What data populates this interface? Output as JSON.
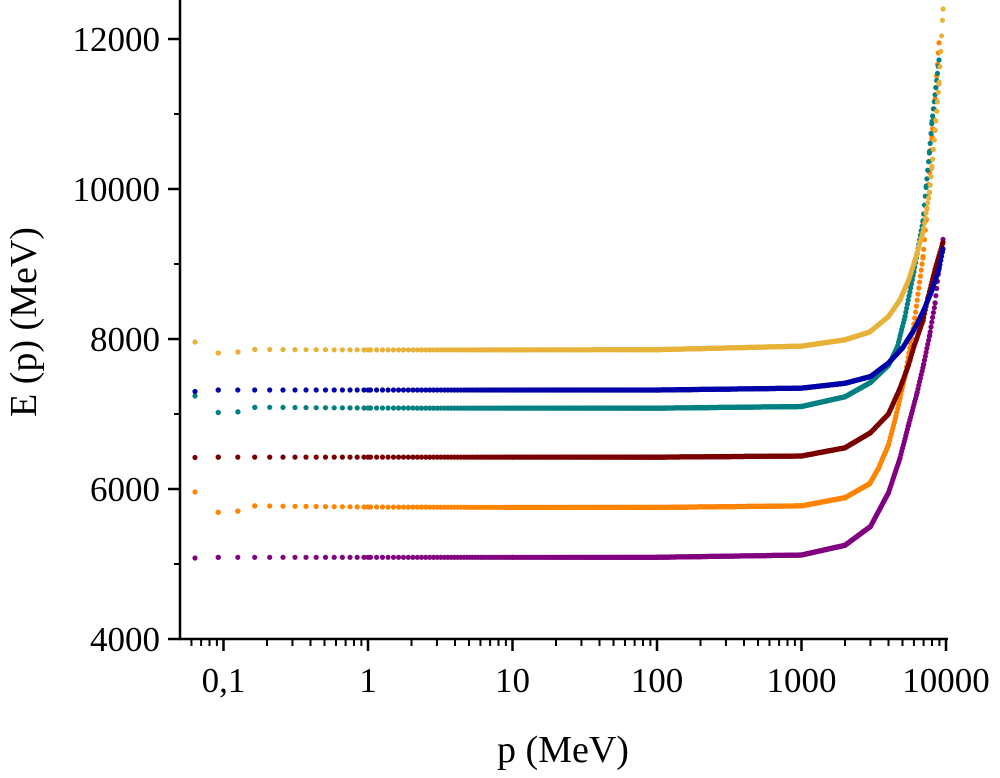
{
  "chart_data": {
    "type": "scatter",
    "title": "",
    "xlabel": "p (MeV)",
    "ylabel": "E (p) (MeV)",
    "xscale": "log",
    "xlim": [
      0.05,
      10000
    ],
    "ylim": [
      4000,
      12500
    ],
    "grid": false,
    "legend": "none",
    "x_ticks": [
      {
        "value": 0.1,
        "label": "0,1"
      },
      {
        "value": 1,
        "label": "1"
      },
      {
        "value": 10,
        "label": "10"
      },
      {
        "value": 100,
        "label": "100"
      },
      {
        "value": 1000,
        "label": "1000"
      },
      {
        "value": 10000,
        "label": "10000"
      }
    ],
    "y_ticks": [
      {
        "value": 4000,
        "label": "4000"
      },
      {
        "value": 6000,
        "label": "6000"
      },
      {
        "value": 8000,
        "label": "8000"
      },
      {
        "value": 10000,
        "label": "10000"
      },
      {
        "value": 12000,
        "label": "12000"
      }
    ],
    "y_minor_ticks": [
      5000,
      7000,
      9000,
      11000
    ],
    "series": [
      {
        "name": "series-yellow",
        "color": "#E8B23A",
        "points": [
          [
            0.0635,
            7960
          ],
          [
            0.092,
            7813
          ],
          [
            0.126,
            7827
          ],
          [
            0.165,
            7860
          ],
          [
            1,
            7855
          ],
          [
            10,
            7855
          ],
          [
            100,
            7858
          ],
          [
            1000,
            7905
          ],
          [
            2000,
            7990
          ],
          [
            2960,
            8093
          ],
          [
            4000,
            8300
          ],
          [
            4800,
            8520
          ],
          [
            5500,
            8780
          ],
          [
            6100,
            9050
          ],
          [
            6940,
            9430
          ],
          [
            7690,
            9960
          ],
          [
            8000,
            10300
          ],
          [
            8400,
            10780
          ],
          [
            8950,
            11400
          ],
          [
            9530,
            12400
          ]
        ]
      },
      {
        "name": "series-orange",
        "color": "#FF8400",
        "points": [
          [
            0.0635,
            5960
          ],
          [
            0.092,
            5690
          ],
          [
            0.126,
            5705
          ],
          [
            0.165,
            5775
          ],
          [
            1,
            5760
          ],
          [
            10,
            5755
          ],
          [
            100,
            5755
          ],
          [
            1000,
            5775
          ],
          [
            2000,
            5885
          ],
          [
            2960,
            6070
          ],
          [
            3400,
            6270
          ],
          [
            4000,
            6590
          ],
          [
            4500,
            6970
          ],
          [
            5200,
            7500
          ],
          [
            6000,
            8200
          ],
          [
            6940,
            9100
          ],
          [
            7300,
            9600
          ],
          [
            7690,
            10250
          ],
          [
            8000,
            10700
          ],
          [
            8400,
            11200
          ],
          [
            8950,
            11950
          ]
        ]
      },
      {
        "name": "series-teal",
        "color": "#008080",
        "points": [
          [
            0.0635,
            7240
          ],
          [
            0.092,
            7020
          ],
          [
            0.126,
            7030
          ],
          [
            0.165,
            7090
          ],
          [
            1,
            7080
          ],
          [
            10,
            7078
          ],
          [
            100,
            7078
          ],
          [
            1000,
            7100
          ],
          [
            2000,
            7230
          ],
          [
            3000,
            7420
          ],
          [
            4000,
            7650
          ],
          [
            4600,
            7890
          ],
          [
            5200,
            8300
          ],
          [
            6000,
            8900
          ],
          [
            6940,
            9580
          ],
          [
            7300,
            10040
          ],
          [
            7690,
            10500
          ],
          [
            8000,
            10900
          ],
          [
            8950,
            11720
          ]
        ]
      },
      {
        "name": "series-blue",
        "color": "#0000A8",
        "points": [
          [
            0.0635,
            7300
          ],
          [
            0.092,
            7320
          ],
          [
            1,
            7320
          ],
          [
            10,
            7320
          ],
          [
            100,
            7320
          ],
          [
            1000,
            7345
          ],
          [
            2000,
            7410
          ],
          [
            3000,
            7500
          ],
          [
            4000,
            7680
          ],
          [
            5000,
            7880
          ],
          [
            6000,
            8120
          ],
          [
            7000,
            8380
          ],
          [
            8000,
            8650
          ],
          [
            8950,
            8930
          ],
          [
            9530,
            9200
          ]
        ]
      },
      {
        "name": "series-darkred",
        "color": "#7A0000",
        "points": [
          [
            0.0635,
            6420
          ],
          [
            0.092,
            6425
          ],
          [
            1,
            6425
          ],
          [
            10,
            6425
          ],
          [
            100,
            6425
          ],
          [
            1000,
            6440
          ],
          [
            2000,
            6550
          ],
          [
            3000,
            6750
          ],
          [
            4000,
            7000
          ],
          [
            4800,
            7340
          ],
          [
            5500,
            7650
          ],
          [
            6000,
            7900
          ],
          [
            6940,
            8250
          ],
          [
            7500,
            8550
          ],
          [
            8400,
            8930
          ],
          [
            9530,
            9290
          ]
        ]
      },
      {
        "name": "series-purple",
        "color": "#800080",
        "points": [
          [
            0.0635,
            5080
          ],
          [
            0.092,
            5090
          ],
          [
            1,
            5090
          ],
          [
            10,
            5090
          ],
          [
            100,
            5090
          ],
          [
            1000,
            5120
          ],
          [
            2000,
            5250
          ],
          [
            3000,
            5500
          ],
          [
            4000,
            5950
          ],
          [
            4800,
            6410
          ],
          [
            5500,
            6850
          ],
          [
            6300,
            7280
          ],
          [
            7000,
            7660
          ],
          [
            7700,
            8050
          ],
          [
            8400,
            8480
          ],
          [
            8950,
            8950
          ],
          [
            9530,
            9330
          ]
        ]
      }
    ]
  }
}
